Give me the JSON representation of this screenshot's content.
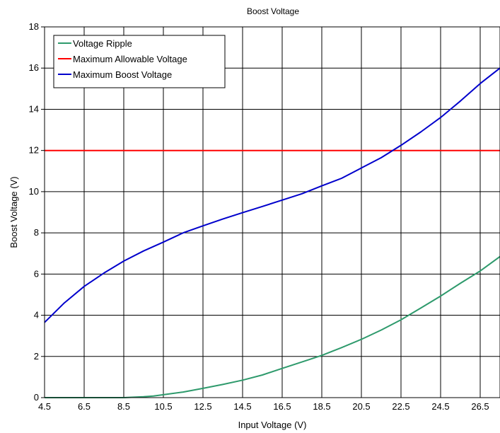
{
  "chart_data": {
    "type": "line",
    "title": "Boost Voltage",
    "xlabel": "Input Voltage (V)",
    "ylabel": "Boost Voltage (V)",
    "xlim": [
      4.5,
      27.5
    ],
    "ylim": [
      0,
      18
    ],
    "x_ticks": [
      4.5,
      6.5,
      8.5,
      10.5,
      12.5,
      14.5,
      16.5,
      18.5,
      20.5,
      22.5,
      24.5,
      26.5
    ],
    "x_tick_labels": [
      "4.5",
      "6.5",
      "8.5",
      "10.5",
      "12.5",
      "14.5",
      "16.5",
      "18.5",
      "20.5",
      "22.5",
      "24.5",
      "26.5"
    ],
    "y_ticks": [
      0,
      2,
      4,
      6,
      8,
      10,
      12,
      14,
      16,
      18
    ],
    "y_tick_labels": [
      "0",
      "2",
      "4",
      "6",
      "8",
      "10",
      "12",
      "14",
      "16",
      "18"
    ],
    "grid": true,
    "legend_position": "top-left",
    "series": [
      {
        "name": "Voltage Ripple",
        "color": "#2e9a6c",
        "x": [
          4.5,
          5.5,
          6.5,
          7.5,
          8.5,
          9.5,
          10,
          10.5,
          11.5,
          12.5,
          13.5,
          14.5,
          15.5,
          16.5,
          17.5,
          18.5,
          19.5,
          20.5,
          21.5,
          22.5,
          23.5,
          24.5,
          25.5,
          26.5,
          27.5
        ],
        "y": [
          0,
          0,
          0,
          0,
          0,
          0.04,
          0.08,
          0.14,
          0.27,
          0.45,
          0.64,
          0.85,
          1.1,
          1.42,
          1.73,
          2.05,
          2.43,
          2.83,
          3.28,
          3.78,
          4.35,
          4.93,
          5.55,
          6.15,
          6.85
        ]
      },
      {
        "name": "Maximum Allowable Voltage",
        "color": "#ff0000",
        "x": [
          4.5,
          27.5
        ],
        "y": [
          12,
          12
        ]
      },
      {
        "name": "Maximum Boost Voltage",
        "color": "#0000cc",
        "x": [
          4.5,
          5.5,
          6.5,
          7.5,
          8.5,
          9.5,
          10.5,
          11.5,
          12.5,
          13.5,
          14.5,
          15.5,
          16.5,
          17.5,
          18.5,
          19.5,
          20.5,
          21.5,
          22.5,
          23.5,
          24.5,
          25.5,
          26.5,
          27.5
        ],
        "y": [
          3.65,
          4.6,
          5.4,
          6.05,
          6.63,
          7.12,
          7.55,
          8.0,
          8.34,
          8.67,
          8.98,
          9.28,
          9.59,
          9.9,
          10.28,
          10.65,
          11.15,
          11.65,
          12.25,
          12.9,
          13.6,
          14.4,
          15.25,
          16.0
        ]
      }
    ]
  }
}
